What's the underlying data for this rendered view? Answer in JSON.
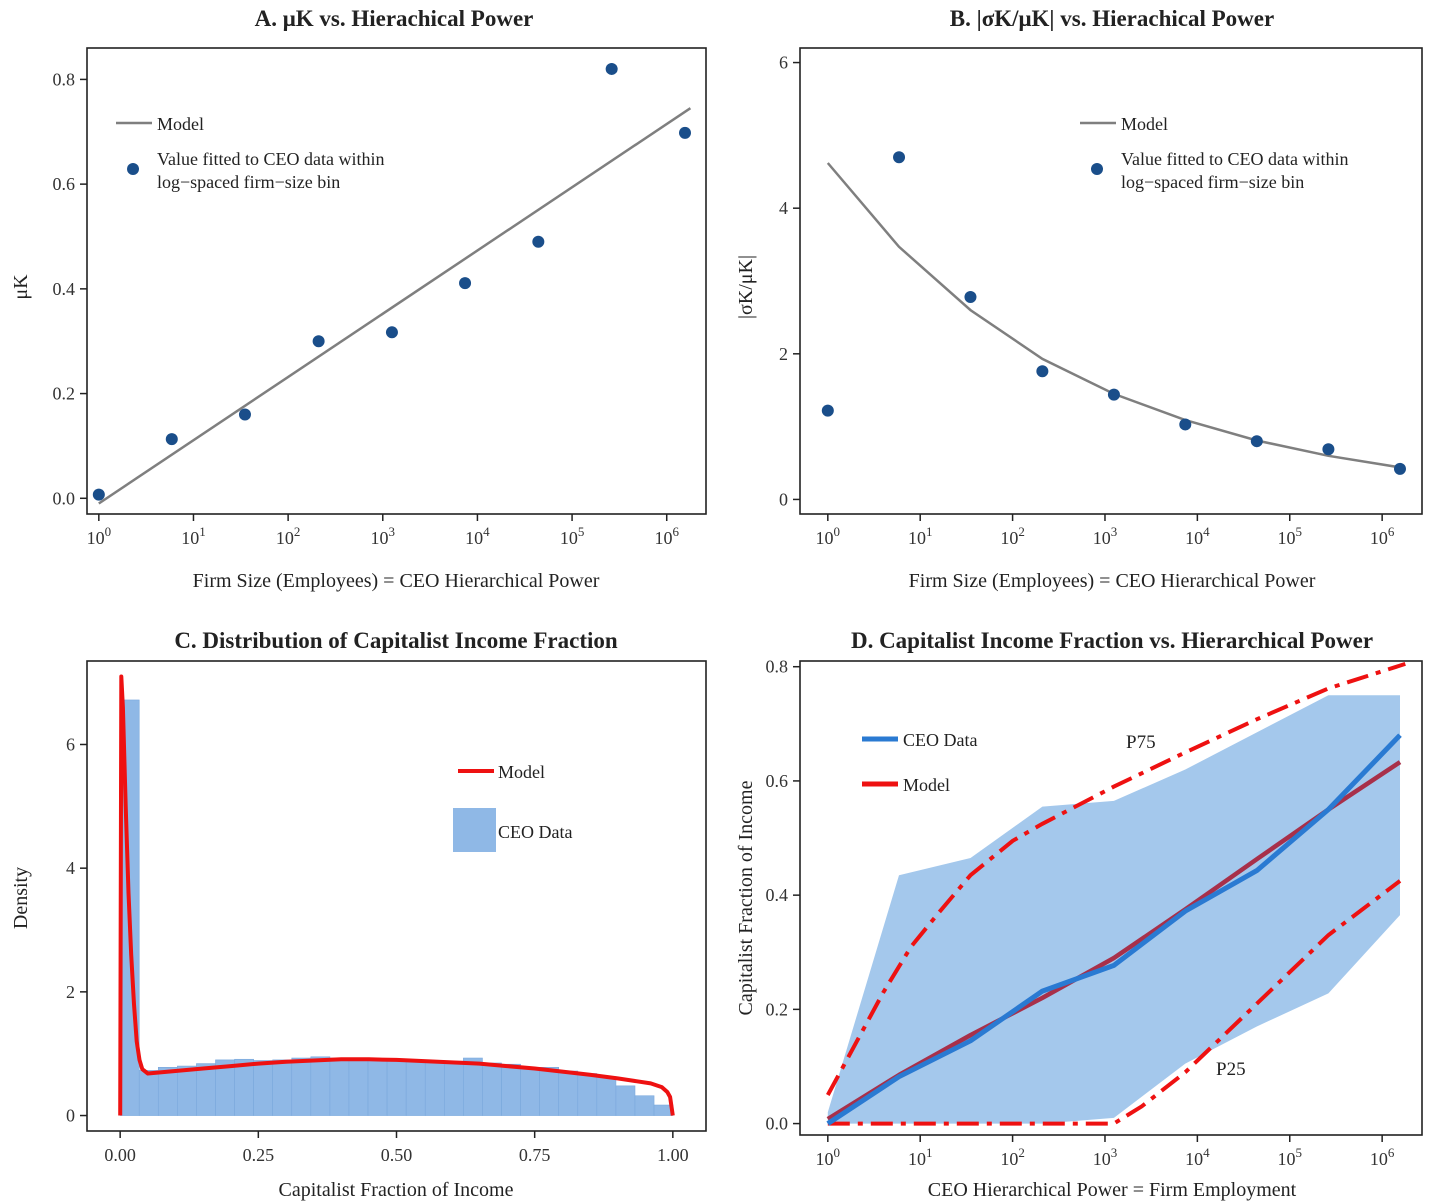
{
  "colors": {
    "model_gray": "#7f7f7f",
    "point_blue": "#1a4e8a",
    "model_red": "#ee1111",
    "data_blue": "#2a7ad2",
    "hist_fill": "#8fb8e6",
    "band_fill": "#a4c8ec",
    "model_maroon": "#a8304a"
  },
  "chart_data": [
    {
      "id": "A",
      "type": "scatter",
      "title": "A.  μK vs. Hierachical Power",
      "xlabel": "Firm Size (Employees) = CEO Hierarchical Power",
      "ylabel": "μK",
      "xscale": "log10",
      "xlim": [
        1,
        1778279
      ],
      "ylim": [
        -0.03,
        0.86
      ],
      "xticks": [
        "10^0",
        "10^1",
        "10^2",
        "10^3",
        "10^4",
        "10^5",
        "10^6"
      ],
      "yticks": [
        "0.0",
        "0.2",
        "0.4",
        "0.6",
        "0.8"
      ],
      "series": [
        {
          "name": "Model",
          "kind": "line",
          "x": [
            1,
            1778279
          ],
          "y": [
            -0.01,
            0.745
          ]
        },
        {
          "name": "Value fitted to CEO data within log−spaced firm−size bin",
          "kind": "points",
          "x": [
            1,
            5.9,
            35,
            210,
            1250,
            7400,
            44000,
            262000,
            1560000
          ],
          "y": [
            0.007,
            0.113,
            0.16,
            0.3,
            0.317,
            0.411,
            0.49,
            0.82,
            0.698
          ]
        }
      ],
      "legend": {
        "position": "top-left",
        "entries": [
          "Model",
          "Value fitted to CEO data within",
          "log−spaced firm−size bin"
        ]
      }
    },
    {
      "id": "B",
      "type": "scatter",
      "title": "B.  |σK/μK| vs. Hierachical Power",
      "xlabel": "Firm Size (Employees) = CEO Hierarchical Power",
      "ylabel": "|σK/μK|",
      "xscale": "log10",
      "xlim": [
        1,
        1778279
      ],
      "ylim": [
        -0.2,
        6.2
      ],
      "xticks": [
        "10^0",
        "10^1",
        "10^2",
        "10^3",
        "10^4",
        "10^5",
        "10^6"
      ],
      "yticks": [
        "0",
        "2",
        "4",
        "6"
      ],
      "series": [
        {
          "name": "Model",
          "kind": "line",
          "x": [
            1,
            5.9,
            35,
            210,
            1250,
            7400,
            44000,
            262000,
            1560000
          ],
          "y": [
            4.62,
            3.47,
            2.6,
            1.93,
            1.45,
            1.09,
            0.81,
            0.6,
            0.44
          ]
        },
        {
          "name": "Value fitted to CEO data within log−spaced firm−size bin",
          "kind": "points",
          "x": [
            1,
            5.9,
            35,
            210,
            1250,
            7400,
            44000,
            262000,
            1560000
          ],
          "y": [
            1.22,
            4.7,
            2.78,
            1.76,
            1.44,
            1.03,
            0.8,
            0.69,
            0.42
          ]
        }
      ],
      "legend": {
        "position": "top-right",
        "entries": [
          "Model",
          "Value fitted to CEO data within",
          "log−spaced firm−size bin"
        ]
      }
    },
    {
      "id": "C",
      "type": "bar",
      "title": "C.  Distribution of Capitalist Income Fraction",
      "xlabel": "Capitalist Fraction of Income",
      "ylabel": "Density",
      "xlim": [
        -0.06,
        1.06
      ],
      "ylim": [
        -0.25,
        7.35
      ],
      "xticks": [
        "0.00",
        "0.25",
        "0.50",
        "0.75",
        "1.00"
      ],
      "yticks": [
        "0",
        "2",
        "4",
        "6"
      ],
      "histogram": {
        "name": "CEO Data",
        "bin_edges": [
          0,
          0.0345,
          0.069,
          0.1035,
          0.138,
          0.1725,
          0.207,
          0.2415,
          0.276,
          0.3105,
          0.345,
          0.3795,
          0.414,
          0.4485,
          0.483,
          0.5175,
          0.552,
          0.5865,
          0.621,
          0.6555,
          0.69,
          0.7245,
          0.759,
          0.7935,
          0.828,
          0.8625,
          0.897,
          0.9315,
          0.966,
          1.0
        ],
        "values": [
          6.72,
          0.73,
          0.78,
          0.8,
          0.84,
          0.9,
          0.91,
          0.89,
          0.9,
          0.93,
          0.95,
          0.93,
          0.92,
          0.9,
          0.9,
          0.9,
          0.88,
          0.88,
          0.93,
          0.85,
          0.83,
          0.78,
          0.78,
          0.72,
          0.68,
          0.63,
          0.48,
          0.32,
          0.17
        ]
      },
      "model_curve": {
        "name": "Model",
        "x": [
          0.0,
          0.002,
          0.005,
          0.01,
          0.015,
          0.02,
          0.025,
          0.03,
          0.035,
          0.04,
          0.05,
          0.075,
          0.1,
          0.15,
          0.2,
          0.25,
          0.3,
          0.35,
          0.4,
          0.45,
          0.5,
          0.55,
          0.6,
          0.65,
          0.7,
          0.75,
          0.8,
          0.85,
          0.9,
          0.93,
          0.96,
          0.98,
          0.99,
          0.995,
          1.0
        ],
        "y": [
          0.0,
          7.1,
          6.6,
          5.0,
          3.6,
          2.6,
          1.8,
          1.2,
          0.9,
          0.75,
          0.68,
          0.7,
          0.72,
          0.76,
          0.8,
          0.84,
          0.87,
          0.89,
          0.91,
          0.91,
          0.9,
          0.88,
          0.86,
          0.84,
          0.8,
          0.76,
          0.71,
          0.66,
          0.6,
          0.56,
          0.52,
          0.46,
          0.38,
          0.3,
          0.0
        ]
      },
      "legend": {
        "position": "top-right",
        "entries": [
          "Model",
          "CEO Data"
        ]
      }
    },
    {
      "id": "D",
      "type": "line",
      "title": "D.  Capitalist Income Fraction vs. Hierarchical Power",
      "xlabel": "CEO Hierarchical Power = Firm Employment",
      "ylabel": "Capitalist Fraction of Income",
      "xscale": "log10",
      "xlim": [
        1,
        1778279
      ],
      "ylim": [
        -0.02,
        0.81
      ],
      "xticks": [
        "10^0",
        "10^1",
        "10^2",
        "10^3",
        "10^4",
        "10^5",
        "10^6"
      ],
      "yticks": [
        "0.0",
        "0.2",
        "0.4",
        "0.6",
        "0.8"
      ],
      "band": {
        "x": [
          1,
          5.9,
          35,
          210,
          1250,
          7400,
          44000,
          262000,
          1560000
        ],
        "upper": [
          0.02,
          0.435,
          0.465,
          0.555,
          0.565,
          0.62,
          0.685,
          0.75,
          0.75
        ],
        "lower": [
          0.0,
          0.0,
          0.0,
          0.0,
          0.01,
          0.105,
          0.17,
          0.228,
          0.365
        ]
      },
      "series": [
        {
          "name": "CEO Data",
          "kind": "line",
          "x": [
            1,
            5.9,
            35,
            210,
            1250,
            7400,
            44000,
            262000,
            1560000
          ],
          "y": [
            0.0,
            0.082,
            0.145,
            0.232,
            0.277,
            0.372,
            0.443,
            0.55,
            0.68
          ]
        },
        {
          "name": "Model",
          "kind": "line",
          "x": [
            1,
            5.9,
            35,
            210,
            1250,
            7400,
            44000,
            262000,
            1560000
          ],
          "y": [
            0.008,
            0.085,
            0.155,
            0.22,
            0.29,
            0.375,
            0.463,
            0.55,
            0.633
          ]
        },
        {
          "name": "P75",
          "kind": "dashdot",
          "x": [
            1,
            2,
            4,
            8,
            16,
            35,
            100,
            210,
            1250,
            7400,
            44000,
            262000,
            1780000
          ],
          "y": [
            0.05,
            0.14,
            0.23,
            0.31,
            0.37,
            0.435,
            0.495,
            0.525,
            0.59,
            0.65,
            0.708,
            0.762,
            0.805
          ]
        },
        {
          "name": "P25",
          "kind": "dashdot",
          "x": [
            1,
            35,
            1250,
            2500,
            7400,
            44000,
            262000,
            1560000
          ],
          "y": [
            0.0,
            0.0,
            0.0,
            0.03,
            0.09,
            0.21,
            0.33,
            0.425
          ]
        }
      ],
      "annotations": [
        "P75",
        "P25"
      ],
      "legend": {
        "position": "top-left",
        "entries": [
          "CEO Data",
          "Model"
        ]
      }
    }
  ]
}
